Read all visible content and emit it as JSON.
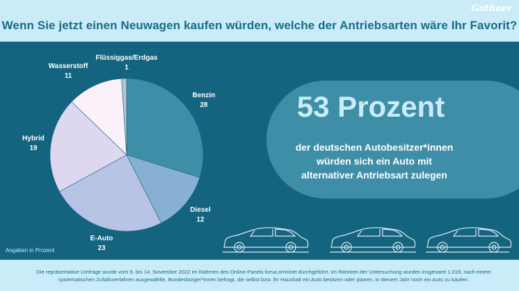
{
  "header": {
    "title": "Wenn Sie jetzt einen Neuwagen kaufen würden, welche der Antriebsarten wäre Ihr Favorit?",
    "brand": "Gothaer"
  },
  "chart_data": {
    "type": "pie",
    "title": "Wenn Sie jetzt einen Neuwagen kaufen würden, welche der Antriebsarten wäre Ihr Favorit?",
    "unit_note": "Angaben in Prozent",
    "slices": [
      {
        "label": "Benzin",
        "value": 28,
        "value_text": "28",
        "color": "#3f8ea8"
      },
      {
        "label": "Diesel",
        "value": 12,
        "value_text": "12",
        "color": "#88b0d2"
      },
      {
        "label": "E-Auto",
        "value": 23,
        "value_text": "23",
        "color": "#b7c4e6"
      },
      {
        "label": "Hybrid",
        "value": 19,
        "value_text": "19",
        "color": "#ddd7f0"
      },
      {
        "label": "Wasserstoff",
        "value": 11,
        "value_text": "11",
        "color": "#fbf1fb"
      },
      {
        "label": "Flüssiggas/Erdgas",
        "value": 1,
        "value_text": "1",
        "color": "#b5c3d2"
      }
    ]
  },
  "highlight": {
    "number": "53 Prozent",
    "line1": "der deutschen Autobesitzer*innen",
    "line2": "würden sich ein Auto mit",
    "line3": "alternativer Antriebsart zulegen"
  },
  "footnote": {
    "text": "Die repräsentative Umfrage wurde vom 9. bis 14. November 2022 im Rahmen des Online-Panels forsa.omninet durchgeführt. Im Rahmen der Untersuchung wurden insgesamt 1.019, nach einem systematischen Zufallsverfahren ausgewählte, Bundesbürger*innen befragt, die selbst bzw. ihr Haushalt ein Auto besitzen oder planen, in diesem Jahr noch ein Auto zu kaufen."
  }
}
